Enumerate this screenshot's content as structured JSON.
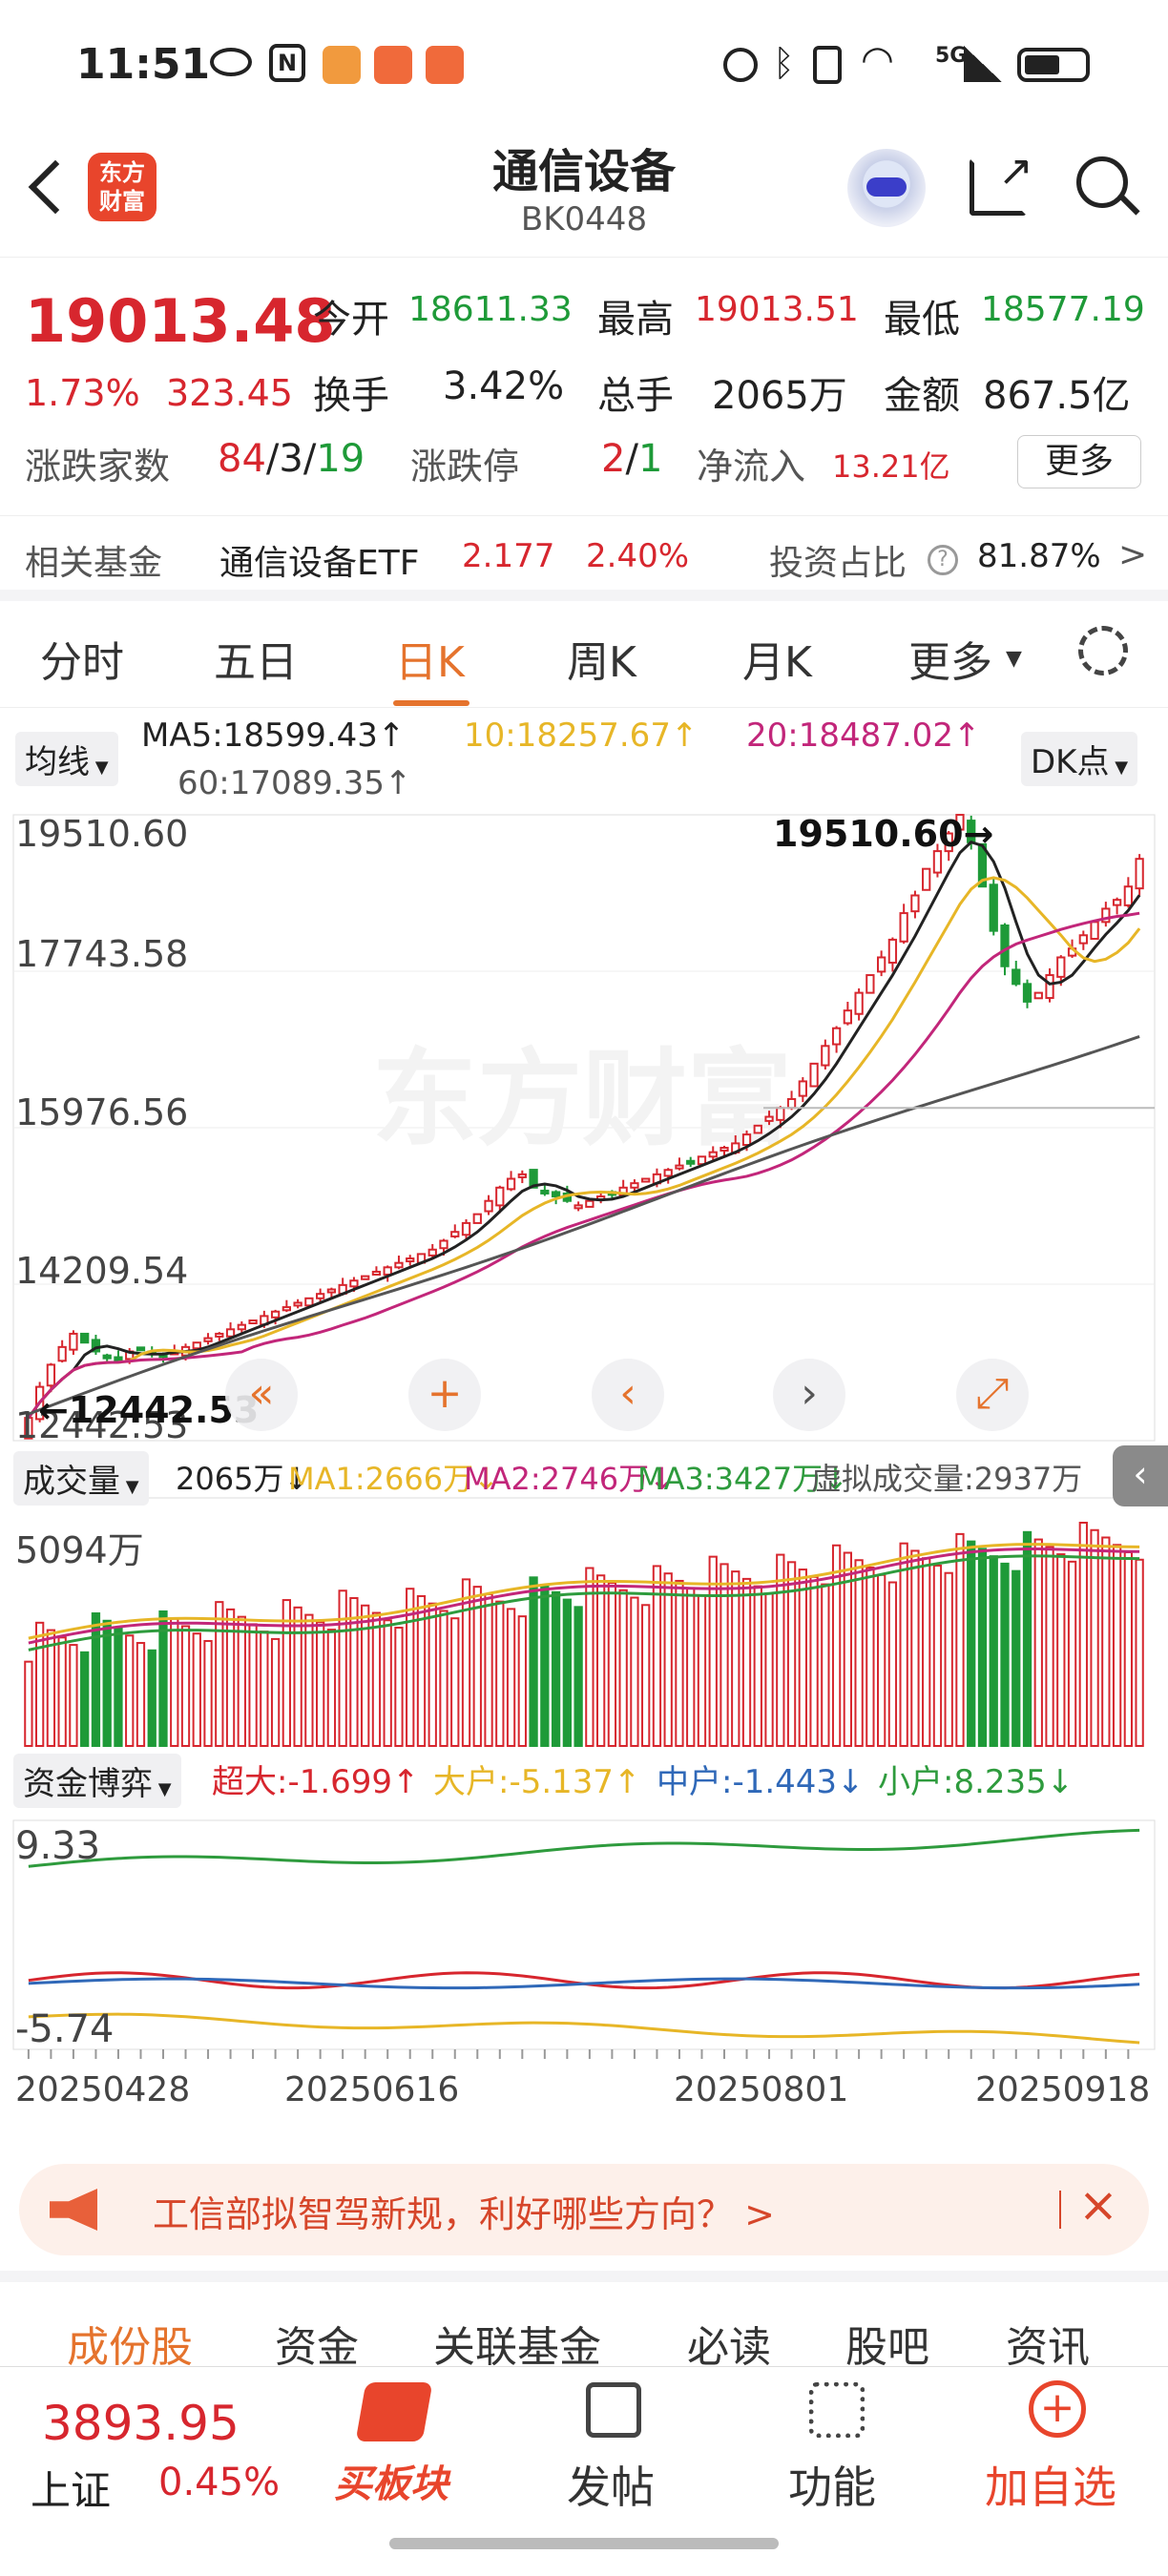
{
  "status_bar": {
    "time": "11:51",
    "network": "5G"
  },
  "header": {
    "logo_text_top": "东方",
    "logo_text_bottom": "财富",
    "title": "通信设备",
    "code": "BK0448"
  },
  "quote": {
    "price": "19013.48",
    "change_pct": "1.73%",
    "change_abs": "323.45",
    "open_label": "今开",
    "open_value": "18611.33",
    "high_label": "最高",
    "high_value": "19013.51",
    "low_label": "最低",
    "low_value": "18577.19",
    "turnover_label": "换手",
    "turnover_value": "3.42%",
    "volume_label": "总手",
    "volume_value": "2065万",
    "amount_label": "金额",
    "amount_value": "867.5亿",
    "updown_label": "涨跌家数",
    "up_count": "84",
    "flat_count": "3",
    "down_count": "19",
    "sep": "/",
    "limit_label": "涨跌停",
    "limit_up": "2",
    "limit_down": "1",
    "netflow_label": "净流入",
    "netflow_value": "13.21亿",
    "more_button": "更多"
  },
  "fund_row": {
    "label": "相关基金",
    "fund_name": "通信设备ETF",
    "fund_price": "2.177",
    "fund_change": "2.40%",
    "ratio_label": "投资占比",
    "ratio_value": "81.87%",
    "arrow": ">"
  },
  "period_tabs": [
    {
      "label": "分时"
    },
    {
      "label": "五日"
    },
    {
      "label": "日K"
    },
    {
      "label": "周K"
    },
    {
      "label": "月K"
    },
    {
      "label": "更多"
    }
  ],
  "ma_legend": {
    "selector": "均线",
    "ma5": "MA5:18599.43↑",
    "ma10": "10:18257.67↑",
    "ma20": "20:18487.02↑",
    "ma60": "60:17089.35↑",
    "dk_button": "DK点"
  },
  "price_axis": [
    "19510.60",
    "17743.58",
    "15976.56",
    "14209.54",
    "12442.53"
  ],
  "annotations": {
    "high": "19510.60",
    "low": "12442.53"
  },
  "volume_panel": {
    "selector": "成交量",
    "current": "2065万↓",
    "ma1": "MA1:2666万↓",
    "ma2": "MA2:2746万↓",
    "ma3": "MA3:3427万↓",
    "virtual": "虚拟成交量:2937万",
    "axis_max": "5094万"
  },
  "fund_panel": {
    "selector": "资金博弈",
    "super": "超大:-1.699↑",
    "large": "大户:-5.137↑",
    "medium": "中户:-1.443↓",
    "small": "小户:8.235↓",
    "axis_max": "9.33",
    "axis_min": "-5.74"
  },
  "date_axis": [
    "20250428",
    "20250616",
    "20250801",
    "20250918"
  ],
  "banner": {
    "text": "工信部拟智驾新规，利好哪些方向？ >"
  },
  "bottom_tabs": [
    {
      "label": "成份股"
    },
    {
      "label": "资金"
    },
    {
      "label": "关联基金"
    },
    {
      "label": "必读"
    },
    {
      "label": "股吧"
    },
    {
      "label": "资讯"
    }
  ],
  "footer": {
    "index_value": "3893.95",
    "index_name": "上证",
    "index_change": "0.45%",
    "buy_label": "买板块",
    "post_label": "发帖",
    "func_label": "功能",
    "add_label": "加自选"
  },
  "chart_data": {
    "type": "candlestick",
    "x_start": "20250428",
    "x_end": "20250925",
    "x_ticks": [
      "20250428",
      "20250616",
      "20250801",
      "20250918"
    ],
    "ylim": [
      12442.53,
      19510.6
    ],
    "y_ticks": [
      19510.6,
      17743.58,
      15976.56,
      14209.54,
      12442.53
    ],
    "close": [
      12700,
      13050,
      13300,
      13500,
      13650,
      13550,
      13450,
      13400,
      13350,
      13450,
      13480,
      13420,
      13400,
      13450,
      13500,
      13550,
      13600,
      13650,
      13700,
      13750,
      13800,
      13850,
      13900,
      13950,
      14000,
      14050,
      14100,
      14150,
      14200,
      14250,
      14300,
      14350,
      14400,
      14450,
      14500,
      14550,
      14600,
      14700,
      14800,
      14900,
      15000,
      15150,
      15300,
      15400,
      15450,
      15300,
      15250,
      15200,
      15150,
      15100,
      15150,
      15200,
      15250,
      15300,
      15350,
      15400,
      15450,
      15500,
      15550,
      15600,
      15650,
      15700,
      15750,
      15800,
      15900,
      16000,
      16100,
      16200,
      16300,
      16500,
      16700,
      16900,
      17100,
      17300,
      17500,
      17700,
      17900,
      18100,
      18400,
      18600,
      18900,
      19100,
      19300,
      19510,
      19200,
      18700,
      18200,
      17800,
      17600,
      17400,
      17500,
      17700,
      17900,
      18000,
      18150,
      18300,
      18450,
      18550,
      18700,
      19013
    ],
    "ma5_last": 18599.43,
    "ma10_last": 18257.67,
    "ma20_last": 18487.02,
    "ma60_last": 17089.35,
    "volume_unit": "万",
    "volume_max": 5094,
    "fund_flow": {
      "max": 9.33,
      "min": -5.74,
      "series": [
        "超大",
        "大户",
        "中户",
        "小户"
      ]
    }
  }
}
